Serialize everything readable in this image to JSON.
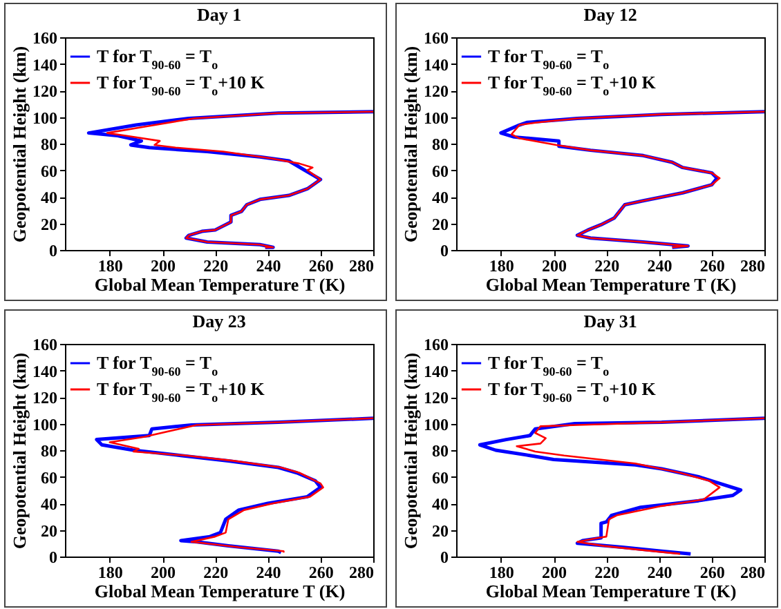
{
  "chart_data": [
    {
      "type": "line",
      "title": "Day 1",
      "xlabel": "Global Mean Temperature T (K)",
      "ylabel": "Geopotential Height (km)",
      "xlim": [
        163,
        280
      ],
      "xticks": [
        180,
        200,
        220,
        240,
        260,
        280
      ],
      "ylim": [
        0,
        160
      ],
      "yticks": [
        0,
        20,
        40,
        60,
        80,
        100,
        120,
        140,
        160
      ],
      "legend": "top",
      "series": [
        {
          "name": "T for T$_{90-60}$ = T$_{o}$",
          "color": "#0000ff",
          "x": [
            280,
            244,
            210,
            190,
            172,
            183,
            192,
            188,
            195,
            217,
            237,
            248,
            254,
            260,
            255,
            248,
            237,
            232,
            230,
            226,
            226,
            220,
            215,
            210,
            209,
            217,
            237,
            242,
            239
          ],
          "values": [
            104,
            103,
            99,
            94,
            88,
            86,
            82,
            79,
            77,
            74,
            70,
            67,
            60,
            53,
            46,
            41,
            38,
            34,
            29,
            26,
            21,
            15,
            14,
            11,
            9,
            6,
            4,
            2,
            2
          ]
        },
        {
          "name": "T for T$_{90-60}$ = T$_{o}$+10 K",
          "color": "#ff0000",
          "x": [
            280,
            244,
            212,
            194,
            179,
            186,
            199,
            197,
            205,
            223,
            241,
            252,
            257,
            255,
            260,
            255,
            248,
            237,
            232,
            230,
            226,
            226,
            220,
            215,
            210,
            209,
            217,
            237,
            242,
            239
          ],
          "values": [
            104,
            103,
            99,
            93,
            88,
            86,
            82,
            79,
            77,
            74,
            69,
            65,
            62,
            60,
            53,
            46,
            41,
            38,
            34,
            29,
            26,
            21,
            15,
            14,
            11,
            9,
            6,
            4,
            2,
            2
          ]
        }
      ]
    },
    {
      "type": "line",
      "title": "Day 12",
      "xlabel": "Global Mean Temperature T (K)",
      "ylabel": "Geopotential Height (km)",
      "xlim": [
        163,
        280
      ],
      "xticks": [
        180,
        200,
        220,
        240,
        260,
        280
      ],
      "ylim": [
        0,
        160
      ],
      "yticks": [
        0,
        20,
        40,
        60,
        80,
        100,
        120,
        140,
        160
      ],
      "legend": "top",
      "series": [
        {
          "name": "T for T$_{90-60}$ = T$_{o}$",
          "color": "#0000ff",
          "x": [
            280,
            241,
            209,
            190,
            187,
            180,
            185,
            202,
            202,
            214,
            234,
            245,
            249,
            260,
            262,
            260,
            249,
            234,
            227,
            225,
            223,
            218,
            213,
            209,
            214,
            234,
            251,
            245
          ],
          "values": [
            104,
            102,
            99,
            96,
            94,
            88,
            85,
            82,
            78,
            75,
            71,
            66,
            62,
            58,
            54,
            49,
            43,
            37,
            34,
            29,
            24,
            19,
            15,
            11,
            9,
            6,
            3,
            2
          ]
        },
        {
          "name": "T for T$_{90-60}$ = T$_{o}$+10 K",
          "color": "#ff0000",
          "x": [
            280,
            241,
            209,
            194,
            187,
            184,
            187,
            201,
            214,
            234,
            245,
            249,
            260,
            263,
            260,
            249,
            234,
            227,
            225,
            223,
            218,
            213,
            209,
            214,
            234,
            251,
            245
          ],
          "values": [
            104,
            102,
            99,
            96,
            94,
            87,
            84,
            79,
            75,
            71,
            66,
            62,
            58,
            54,
            49,
            43,
            37,
            34,
            29,
            24,
            19,
            15,
            11,
            9,
            6,
            3,
            2
          ]
        }
      ]
    },
    {
      "type": "line",
      "title": "Day 23",
      "xlabel": "Global Mean Temperature T (K)",
      "ylabel": "Geopotential Height (km)",
      "xlim": [
        163,
        280
      ],
      "xticks": [
        180,
        200,
        220,
        240,
        260,
        280
      ],
      "ylim": [
        0,
        160
      ],
      "yticks": [
        0,
        20,
        40,
        60,
        80,
        100,
        120,
        140,
        160
      ],
      "legend": "top",
      "series": [
        {
          "name": "T for T$_{90-60}$ = T$_{o}$",
          "color": "#0000ff",
          "x": [
            280,
            244,
            211,
            196,
            195,
            175,
            177,
            189,
            207,
            225,
            244,
            251,
            258,
            260,
            255,
            240,
            229,
            224,
            222,
            218,
            207,
            213,
            225,
            244,
            245
          ],
          "values": [
            104,
            101,
            99,
            96,
            91,
            88,
            84,
            80,
            76,
            72,
            67,
            63,
            57,
            52,
            45,
            40,
            35,
            28,
            18,
            15,
            12,
            11,
            8,
            4,
            3
          ]
        },
        {
          "name": "T for T$_{90-60}$ = T$_{o}$+10 K",
          "color": "#ff0000",
          "x": [
            280,
            244,
            213,
            193,
            180,
            191,
            189,
            209,
            227,
            245,
            252,
            260,
            261,
            256,
            242,
            231,
            225,
            224,
            220,
            211,
            216,
            229,
            246,
            246
          ],
          "values": [
            104,
            101,
            99,
            90,
            86,
            81,
            79,
            76,
            72,
            67,
            63,
            55,
            52,
            45,
            40,
            35,
            28,
            18,
            15,
            11,
            10,
            7,
            4,
            3
          ]
        }
      ]
    },
    {
      "type": "line",
      "title": "Day 31",
      "xlabel": "Global Mean Temperature T (K)",
      "ylabel": "Geopotential Height (km)",
      "xlim": [
        163,
        280
      ],
      "xticks": [
        180,
        200,
        220,
        240,
        260,
        280
      ],
      "ylim": [
        0,
        160
      ],
      "yticks": [
        0,
        20,
        40,
        60,
        80,
        100,
        120,
        140,
        160
      ],
      "legend": "top",
      "series": [
        {
          "name": "T for T$_{90-60}$ = T$_{o}$",
          "color": "#0000ff",
          "x": [
            280,
            241,
            208,
            193,
            191,
            182,
            172,
            178,
            191,
            200,
            231,
            241,
            255,
            263,
            271,
            268,
            255,
            233,
            222,
            220,
            218,
            218,
            211,
            209,
            226,
            241,
            252
          ],
          "values": [
            104,
            101,
            100,
            96,
            91,
            88,
            84,
            80,
            76,
            73,
            69,
            66,
            60,
            55,
            50,
            46,
            42,
            37,
            31,
            26,
            25,
            14,
            12,
            10,
            7,
            4,
            2
          ]
        },
        {
          "name": "T for T$_{90-60}$ = T$_{o}$+10 K",
          "color": "#ff0000",
          "x": [
            280,
            241,
            209,
            195,
            193,
            197,
            195,
            186,
            193,
            204,
            231,
            248,
            259,
            263,
            257,
            241,
            224,
            221,
            220,
            217,
            209,
            219,
            233,
            248
          ],
          "values": [
            104,
            101,
            99,
            98,
            93,
            89,
            85,
            83,
            79,
            76,
            70,
            63,
            57,
            52,
            43,
            38,
            31,
            28,
            15,
            14,
            11,
            8,
            5,
            2
          ]
        }
      ]
    }
  ]
}
